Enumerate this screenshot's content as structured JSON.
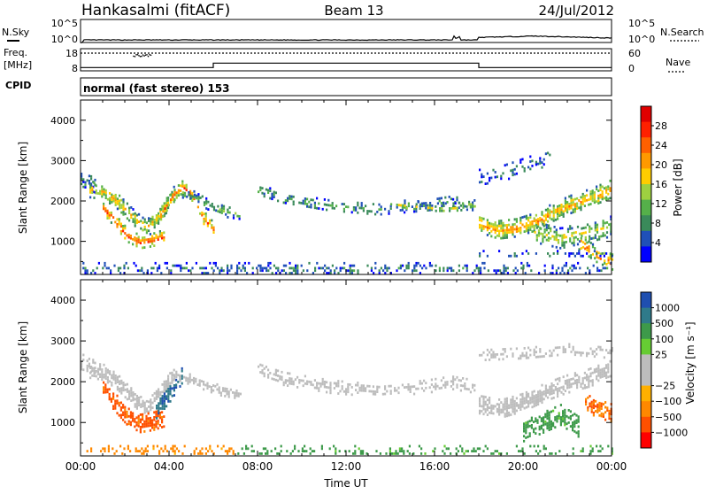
{
  "header": {
    "station": "Hankasalmi (fitACF)",
    "beam": "Beam 13",
    "date": "24/Jul/2012"
  },
  "status_panel": {
    "nsky_label": "N.Sky",
    "nsearch_label": "N.Search",
    "freq_label_line1": "Freq.",
    "freq_label_line2": "[MHz]",
    "cpid_label": "CPID",
    "nave_label": "Nave",
    "cpid_text": "normal (fast stereo) 153",
    "noise_ticks": [
      "10^5",
      "10^0"
    ],
    "freq_ticks": [
      "18",
      "8"
    ],
    "nave_ticks": [
      "60",
      "0"
    ],
    "noise_level_log10": 0.55,
    "noise_level_high_log10": 1.4,
    "freq_steps": [
      {
        "t0": 0.0,
        "t1": 6.0,
        "mhz": 9.5
      },
      {
        "t0": 6.0,
        "t1": 18.0,
        "mhz": 11.5
      },
      {
        "t0": 18.0,
        "t1": 24.0,
        "mhz": 9.5
      }
    ],
    "nave_dotted_level": 48
  },
  "chart_data": [
    {
      "type": "heatmap",
      "name": "power",
      "ylabel": "Slant Range [km]",
      "x_range_hours": [
        0,
        24
      ],
      "ylim": [
        180,
        4500
      ],
      "yticks": [
        1000,
        2000,
        3000,
        4000
      ],
      "colorbar_label": "Power [dB]",
      "colorbar_ticks": [
        "4",
        "8",
        "12",
        "16",
        "20",
        "24",
        "28"
      ],
      "colorbar_colors": [
        "#0000ff",
        "#2050b8",
        "#3a8a5a",
        "#55b04a",
        "#9ed040",
        "#ffcc00",
        "#ff9900",
        "#ff6000",
        "#ff2000",
        "#e00000"
      ],
      "bands": [
        {
          "t0": 0.0,
          "t1": 0.7,
          "r": [
            2500,
            2450,
            2400
          ],
          "w": 200,
          "val": 6,
          "dens": 0.6
        },
        {
          "t0": 0.4,
          "t1": 4.2,
          "r": [
            2300,
            2250,
            2000,
            1650,
            1350,
            1700,
            2200
          ],
          "w": 190,
          "val": 15,
          "dens": 0.85
        },
        {
          "t0": 1.0,
          "t1": 3.8,
          "r": [
            1850,
            1500,
            1150,
            1000,
            1050,
            1150
          ],
          "w": 170,
          "val": 21,
          "dens": 0.8
        },
        {
          "t0": 3.6,
          "t1": 6.0,
          "r": [
            1700,
            2100,
            2400,
            2150,
            1600,
            1300
          ],
          "w": 180,
          "val": 19,
          "dens": 0.8
        },
        {
          "t0": 4.5,
          "t1": 7.2,
          "r": [
            2250,
            2100,
            1900,
            1750,
            1700
          ],
          "w": 130,
          "val": 9,
          "dens": 0.55
        },
        {
          "t0": 8.0,
          "t1": 17.8,
          "r": [
            2300,
            2100,
            2000,
            1900,
            1850,
            1800,
            1850,
            1900,
            2000,
            1900
          ],
          "w": 140,
          "val": 8,
          "dens": 0.5
        },
        {
          "t0": 14.0,
          "t1": 17.8,
          "r": [
            1950,
            1900,
            1850,
            1850,
            1900
          ],
          "w": 120,
          "val": 12,
          "dens": 0.45
        },
        {
          "t0": 18.0,
          "t1": 23.9,
          "r": [
            1450,
            1300,
            1350,
            1500,
            1750,
            1950,
            2100,
            2300
          ],
          "w": 230,
          "val": 17,
          "dens": 0.85
        },
        {
          "t0": 18.0,
          "t1": 21.2,
          "r": [
            2600,
            2700,
            2900,
            3100
          ],
          "w": 200,
          "val": 5,
          "dens": 0.4
        },
        {
          "t0": 20.5,
          "t1": 24.0,
          "r": [
            1250,
            1100,
            1250,
            1400
          ],
          "w": 250,
          "val": 13,
          "dens": 0.6
        },
        {
          "t0": 22.5,
          "t1": 24.0,
          "r": [
            1000,
            700,
            500
          ],
          "w": 200,
          "val": 19,
          "dens": 0.6
        },
        {
          "t0": 0.0,
          "t1": 24.0,
          "r": [
            350,
            350
          ],
          "w": 140,
          "val": 6,
          "dens": 0.35
        },
        {
          "t0": 18.0,
          "t1": 24.0,
          "r": [
            700,
            700
          ],
          "w": 90,
          "val": 5,
          "dens": 0.3
        }
      ]
    },
    {
      "type": "heatmap",
      "name": "velocity",
      "ylabel": "Slant Range [km]",
      "xlabel": "Time UT",
      "x_range_hours": [
        0,
        24
      ],
      "xticks": [
        "00:00",
        "04:00",
        "08:00",
        "12:00",
        "16:00",
        "20:00",
        "00:00"
      ],
      "ylim": [
        180,
        4500
      ],
      "yticks": [
        1000,
        2000,
        3000,
        4000
      ],
      "colorbar_label": "Velocity [m s⁻¹]",
      "colorbar_ticks": [
        "1000",
        "500",
        "100",
        "25",
        "−25",
        "−100",
        "−500",
        "−1000"
      ],
      "colorbar_colors": [
        "#1f4fb0",
        "#2f7a8a",
        "#3d9a4a",
        "#66cc33",
        "#bdbdbd",
        "#bdbdbd",
        "#ffb000",
        "#ff8800",
        "#ff5000",
        "#ff0000"
      ],
      "bands": [
        {
          "t0": 0.0,
          "t1": 0.7,
          "r": [
            2500,
            2450,
            2400
          ],
          "w": 200,
          "val": 0,
          "dens": 0.6
        },
        {
          "t0": 0.4,
          "t1": 4.2,
          "r": [
            2300,
            2250,
            2000,
            1650,
            1350,
            1700,
            2200
          ],
          "w": 190,
          "val": 0,
          "dens": 0.85
        },
        {
          "t0": 1.0,
          "t1": 3.8,
          "r": [
            1850,
            1500,
            1150,
            1000,
            1050,
            1150
          ],
          "w": 220,
          "val": -400,
          "dens": 0.9
        },
        {
          "t0": 3.4,
          "t1": 4.6,
          "r": [
            1300,
            1700,
            2200
          ],
          "w": 200,
          "val": 600,
          "dens": 0.7
        },
        {
          "t0": 4.2,
          "t1": 7.2,
          "r": [
            2200,
            2000,
            1800,
            1700
          ],
          "w": 150,
          "val": 0,
          "dens": 0.6
        },
        {
          "t0": 8.0,
          "t1": 17.8,
          "r": [
            2300,
            2100,
            2000,
            1900,
            1850,
            1800,
            1850,
            1900,
            2000,
            1900
          ],
          "w": 160,
          "val": 0,
          "dens": 0.5
        },
        {
          "t0": 18.0,
          "t1": 23.9,
          "r": [
            1450,
            1350,
            1500,
            1750,
            1950,
            2100,
            2300
          ],
          "w": 230,
          "val": 0,
          "dens": 0.85
        },
        {
          "t0": 18.0,
          "t1": 24.0,
          "r": [
            2650,
            2700,
            2800,
            2700
          ],
          "w": 150,
          "val": 0,
          "dens": 0.45
        },
        {
          "t0": 20.0,
          "t1": 22.5,
          "r": [
            800,
            1000,
            1200,
            900
          ],
          "w": 260,
          "val": 150,
          "dens": 0.7
        },
        {
          "t0": 22.8,
          "t1": 24.0,
          "r": [
            1500,
            1350,
            1250
          ],
          "w": 220,
          "val": -300,
          "dens": 0.75
        },
        {
          "t0": 0.0,
          "t1": 7.0,
          "r": [
            330,
            330
          ],
          "w": 120,
          "val": -150,
          "dens": 0.35
        },
        {
          "t0": 7.0,
          "t1": 24.0,
          "r": [
            330,
            330
          ],
          "w": 120,
          "val": 150,
          "dens": 0.3
        }
      ]
    }
  ]
}
